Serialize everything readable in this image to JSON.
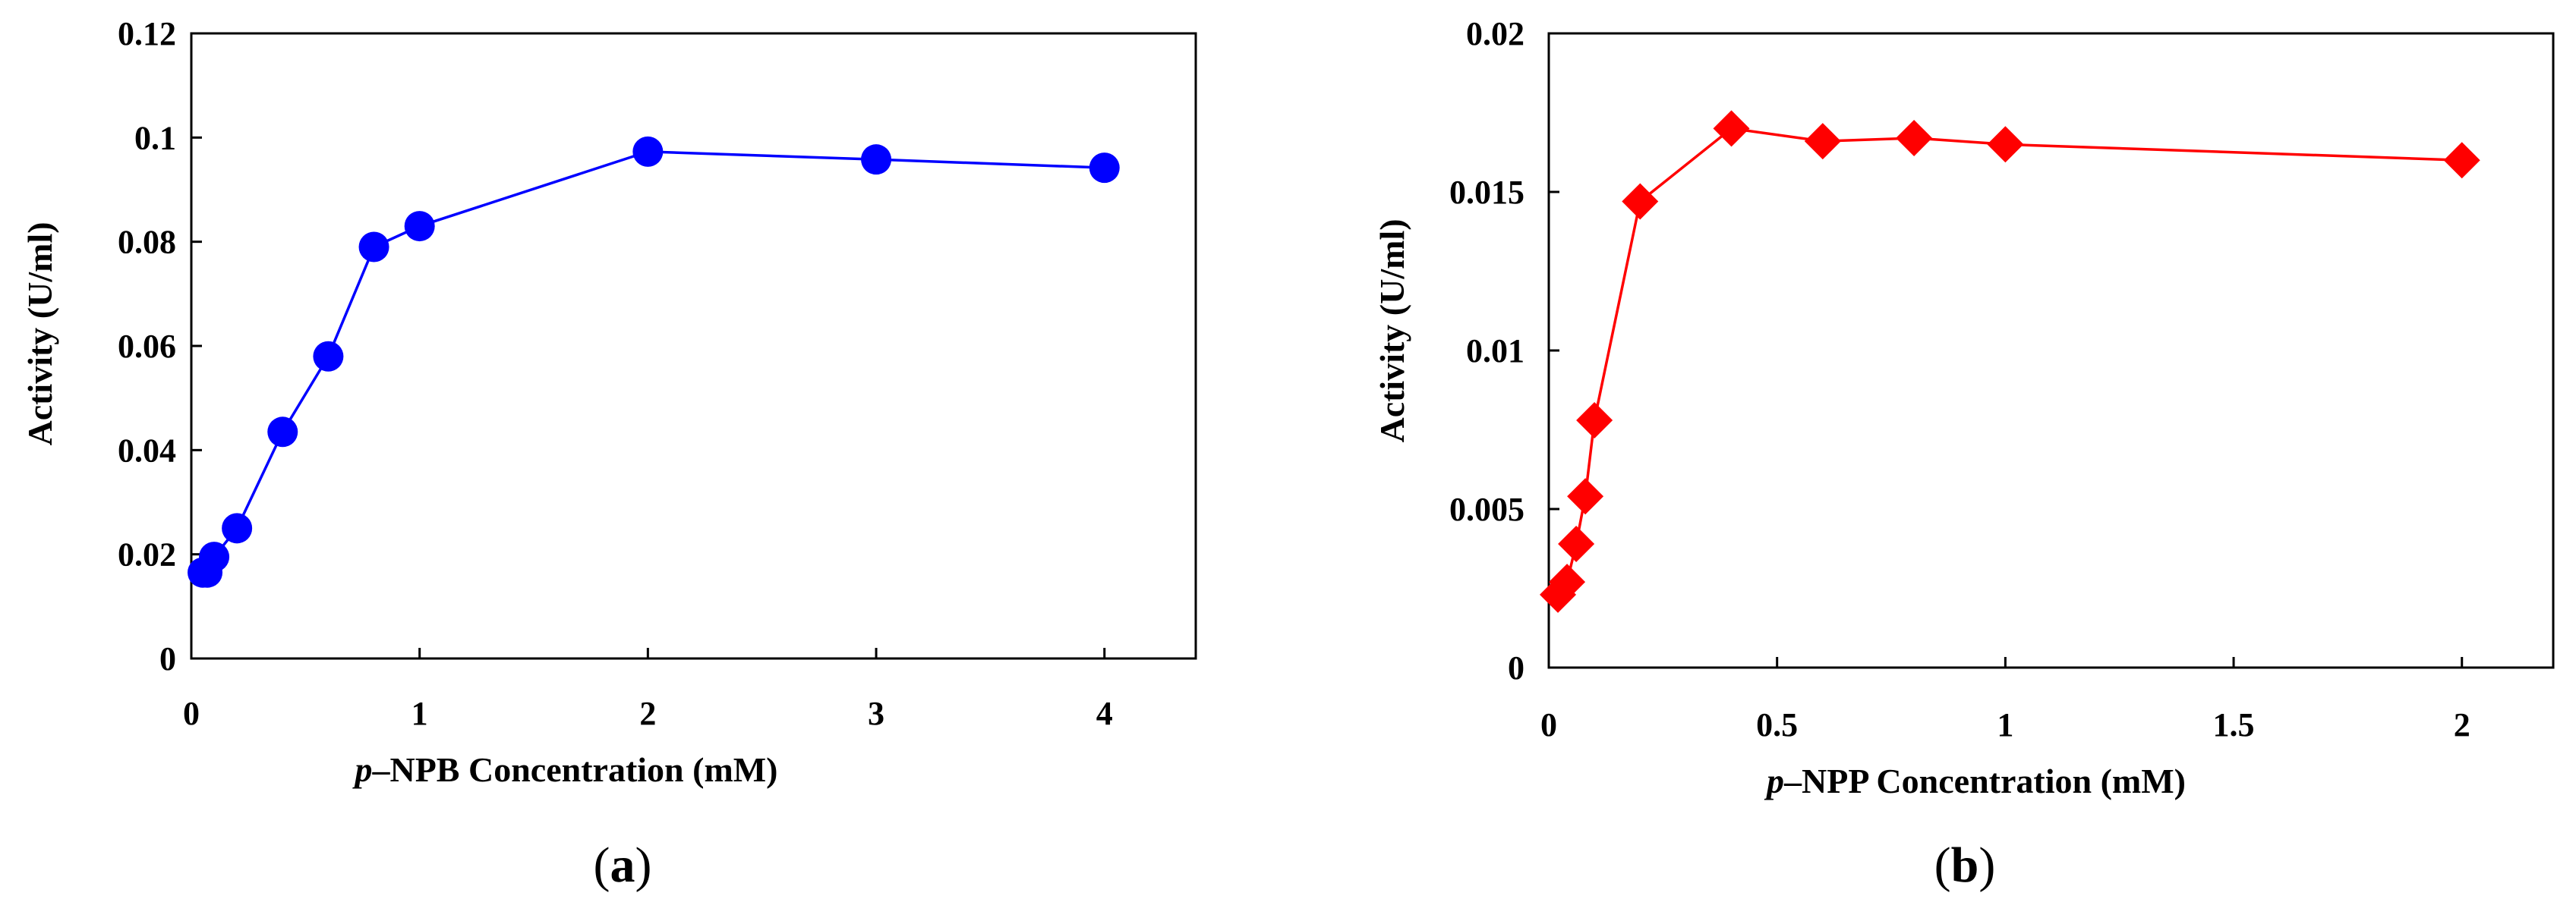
{
  "chart_data": [
    {
      "type": "line",
      "panel_label": "(a)",
      "panel_letter": "a",
      "title": "",
      "xlabel_italic": "p",
      "xlabel_rest": "–NPB Concentration  (mM)",
      "ylabel": "Activity  (U/ml)",
      "xlim": [
        0,
        4.4
      ],
      "ylim": [
        0,
        0.12
      ],
      "x_ticks": [
        0,
        1,
        2,
        3,
        4
      ],
      "y_ticks": [
        0,
        0.02,
        0.04,
        0.06,
        0.08,
        0.1,
        0.12
      ],
      "marker": "circle",
      "color": "#0000ff",
      "series": [
        {
          "name": "p-NPB",
          "x": [
            0.05,
            0.07,
            0.1,
            0.2,
            0.4,
            0.6,
            0.8,
            1.0,
            2.0,
            3.0,
            4.0
          ],
          "y": [
            0.0165,
            0.0165,
            0.0195,
            0.025,
            0.0435,
            0.058,
            0.079,
            0.083,
            0.0973,
            0.0958,
            0.0942
          ]
        }
      ]
    },
    {
      "type": "line",
      "panel_label": "(b)",
      "panel_letter": "b",
      "title": "",
      "xlabel_italic": "p",
      "xlabel_rest": "–NPP Concentration  (mM)",
      "ylabel": "Activity  (U/ml)",
      "xlim": [
        0,
        2.2
      ],
      "ylim": [
        0,
        0.02
      ],
      "x_ticks": [
        0,
        0.5,
        1,
        1.5,
        2
      ],
      "y_ticks": [
        0,
        0.005,
        0.01,
        0.015,
        0.02
      ],
      "marker": "diamond",
      "color": "#ff0000",
      "series": [
        {
          "name": "p-NPP",
          "x": [
            0.02,
            0.04,
            0.06,
            0.08,
            0.1,
            0.2,
            0.4,
            0.6,
            0.8,
            1.0,
            2.0
          ],
          "y": [
            0.0023,
            0.0027,
            0.0039,
            0.0054,
            0.0078,
            0.0147,
            0.017,
            0.0166,
            0.0167,
            0.0165,
            0.016
          ]
        }
      ]
    }
  ]
}
